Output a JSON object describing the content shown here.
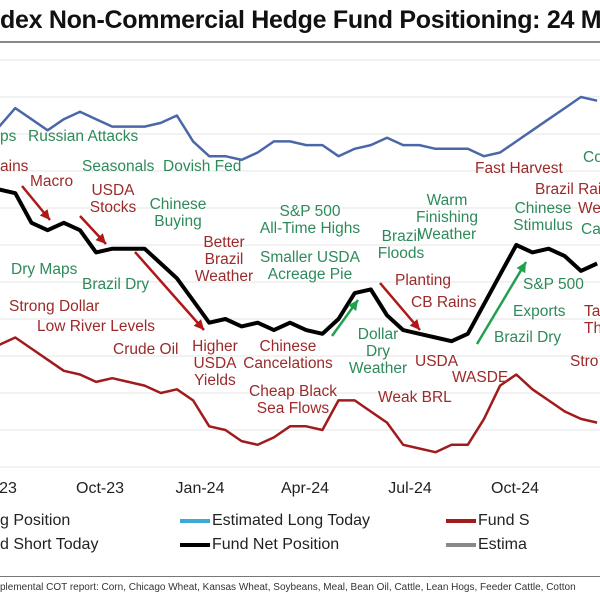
{
  "title": "dex Non-Commercial Hedge Fund Positioning: 24 Mo",
  "footer": "plemental COT report: Corn, Chicago Wheat, Kansas Wheat, Soybeans, Meal, Bean Oil, Cattle, Lean Hogs, Feeder Cattle, Cotton",
  "chart_data": {
    "type": "line",
    "title": "dex Non-Commercial Hedge Fund Positioning: 24 Mo",
    "xlabel": "",
    "ylabel": "",
    "ylim": [
      0,
      110
    ],
    "grid": true,
    "legend_position": "bottom",
    "x_ticks": [
      "23",
      "Oct-23",
      "Jan-24",
      "Apr-24",
      "Jul-24",
      "Oct-24"
    ],
    "x": [
      "2023-07-11",
      "2023-07-25",
      "2023-08-08",
      "2023-08-22",
      "2023-09-05",
      "2023-09-19",
      "2023-10-03",
      "2023-10-17",
      "2023-10-31",
      "2023-11-14",
      "2023-11-28",
      "2023-12-12",
      "2023-12-26",
      "2024-01-09",
      "2024-01-23",
      "2024-02-06",
      "2024-02-20",
      "2024-03-05",
      "2024-03-19",
      "2024-04-02",
      "2024-04-16",
      "2024-04-30",
      "2024-05-14",
      "2024-05-28",
      "2024-06-11",
      "2024-06-25",
      "2024-07-09",
      "2024-07-23",
      "2024-08-06",
      "2024-08-20",
      "2024-09-03",
      "2024-09-17",
      "2024-10-01",
      "2024-10-15",
      "2024-10-29",
      "2024-11-12",
      "2024-11-26",
      "2024-12-10"
    ],
    "series": [
      {
        "color": "#4a67a8",
        "values": [
          92,
          97,
          94,
          91,
          94,
          96,
          94,
          92,
          92,
          92,
          93,
          95,
          88,
          84,
          84,
          83,
          85,
          88,
          88,
          87,
          87,
          84,
          86,
          87,
          89,
          87,
          87,
          86,
          86,
          86,
          84,
          85,
          88,
          91,
          94,
          97,
          100,
          99
        ]
      },
      {
        "name": "Fund Net Position",
        "color": "#000000",
        "values": [
          75,
          74,
          66,
          64,
          66,
          64,
          58,
          59,
          59,
          59,
          55,
          51,
          45,
          39,
          40,
          38,
          39,
          37,
          39,
          37,
          36,
          40,
          47,
          48,
          41,
          37,
          36,
          35,
          34,
          36,
          44,
          52,
          60,
          58,
          59,
          57,
          53,
          55
        ]
      },
      {
        "color": "#a01c1c",
        "values": [
          33,
          35,
          32,
          29,
          26,
          25,
          23,
          24,
          23,
          22,
          20,
          21,
          18,
          11,
          10,
          7,
          6,
          8,
          11,
          11,
          10,
          18,
          18,
          15,
          12,
          6,
          5,
          4,
          6,
          6,
          13,
          22,
          25,
          21,
          18,
          15,
          13,
          12
        ]
      }
    ],
    "legend": [
      {
        "label": "g Position",
        "color": "#4a67a8"
      },
      {
        "label": "Estimated Long Today",
        "color": "#3fa9d6"
      },
      {
        "label": "Fund S",
        "color": "#a01c1c"
      },
      {
        "label": "d Short Today",
        "color": "#d98080"
      },
      {
        "label": "Fund Net Position",
        "color": "#000000"
      },
      {
        "label": "Estima",
        "color": "#888888"
      }
    ],
    "annotations": [
      {
        "text": "ps",
        "color": "green"
      },
      {
        "text": "Russian Attacks",
        "color": "green"
      },
      {
        "text": "ains",
        "color": "red"
      },
      {
        "text": "Seasonals",
        "color": "green"
      },
      {
        "text": "Dovish Fed",
        "color": "green"
      },
      {
        "text": "Macro",
        "color": "red"
      },
      {
        "text": "USDA\nStocks",
        "color": "red"
      },
      {
        "text": "Chinese\nBuying",
        "color": "green"
      },
      {
        "text": "Fast Harvest",
        "color": "red"
      },
      {
        "text": "Co",
        "color": "green"
      },
      {
        "text": "Brazil Rai",
        "color": "red"
      },
      {
        "text": "Chinese\nStimulus",
        "color": "green"
      },
      {
        "text": "We",
        "color": "red"
      },
      {
        "text": "Cas",
        "color": "green"
      },
      {
        "text": "Warm\nFinishing\nWeather",
        "color": "green"
      },
      {
        "text": "S&P 500\nAll-Time Highs",
        "color": "green"
      },
      {
        "text": "Brazil\nFloods",
        "color": "green"
      },
      {
        "text": "Better\nBrazil\nWeather",
        "color": "red"
      },
      {
        "text": "Smaller USDA\nAcreage Pie",
        "color": "green"
      },
      {
        "text": "Planting",
        "color": "red"
      },
      {
        "text": "CB Rains",
        "color": "red"
      },
      {
        "text": "Dry Maps",
        "color": "green"
      },
      {
        "text": "Brazil Dry",
        "color": "green"
      },
      {
        "text": "Strong Dollar",
        "color": "red"
      },
      {
        "text": "Low River Levels",
        "color": "red"
      },
      {
        "text": "S&P 500",
        "color": "green"
      },
      {
        "text": "Exports",
        "color": "green"
      },
      {
        "text": "Ta\nThr",
        "color": "red"
      },
      {
        "text": "Brazil Dry",
        "color": "green"
      },
      {
        "text": "Crude Oil",
        "color": "red"
      },
      {
        "text": "Higher\nUSDA\nYields",
        "color": "red"
      },
      {
        "text": "Chinese\nCancelations",
        "color": "red"
      },
      {
        "text": "Dollar\nDry\nWeather",
        "color": "green"
      },
      {
        "text": "USDA",
        "color": "red"
      },
      {
        "text": "WASDE",
        "color": "red"
      },
      {
        "text": "Stro",
        "color": "red"
      },
      {
        "text": "Cheap Black\nSea Flows",
        "color": "red"
      },
      {
        "text": "Weak BRL",
        "color": "red"
      }
    ],
    "palette": {
      "green": "#2e8a5a",
      "red": "#9b2a2a",
      "arrow_red": "#b01818",
      "arrow_green": "#22a050",
      "grid": "#e6e6e6"
    }
  }
}
